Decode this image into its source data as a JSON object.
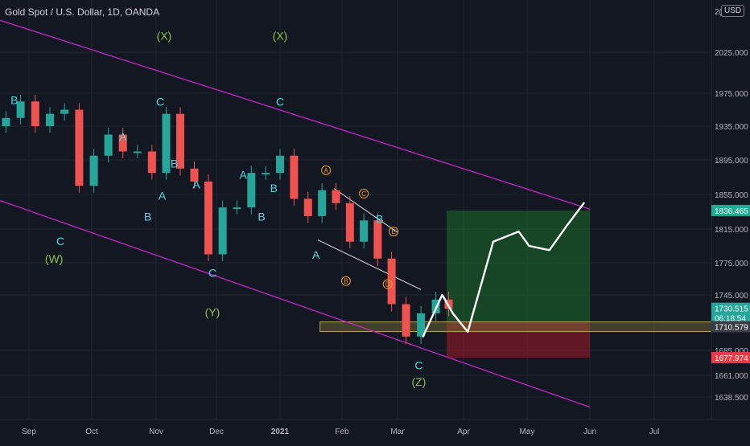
{
  "chart_data": {
    "type": "candlestick",
    "title": "Gold Spot / U.S. Dollar, 1D, OANDA",
    "currency": "USD",
    "ylim": [
      1620,
      2060
    ],
    "y_ticks": [
      "2025.000",
      "1975.000",
      "1935.000",
      "1895.000",
      "1855.000",
      "1815.000",
      "1775.000",
      "1745.000",
      "1685.000",
      "1661.000",
      "1638.500"
    ],
    "y_tick_values": [
      2025,
      1975,
      1935,
      1895,
      1855,
      1815,
      1775,
      1745,
      1685,
      1661,
      1638.5
    ],
    "top_partial_tick": "2(",
    "x_ticks": [
      "Sep",
      "Oct",
      "Nov",
      "Dec",
      "2021",
      "Feb",
      "Mar",
      "Apr",
      "May",
      "Jun",
      "Jul"
    ],
    "x_tick_dates": [
      "2020-09-01",
      "2020-10-01",
      "2020-11-01",
      "2020-12-01",
      "2021-01-01",
      "2021-02-01",
      "2021-03-01",
      "2021-04-01",
      "2021-05-01",
      "2021-06-01",
      "2021-07-01"
    ],
    "series": [
      {
        "dates": [
          "2020-08-21",
          "2020-08-28",
          "2020-09-04",
          "2020-09-11",
          "2020-09-18",
          "2020-09-25",
          "2020-10-02",
          "2020-10-09",
          "2020-10-16",
          "2020-10-23",
          "2020-10-30",
          "2020-11-06",
          "2020-11-13",
          "2020-11-20",
          "2020-11-27",
          "2020-12-04",
          "2020-12-11",
          "2020-12-18",
          "2020-12-25",
          "2021-01-01",
          "2021-01-08",
          "2021-01-15",
          "2021-01-22",
          "2021-01-29",
          "2021-02-05",
          "2021-02-12",
          "2021-02-19",
          "2021-02-26",
          "2021-03-05",
          "2021-03-12",
          "2021-03-19",
          "2021-03-25"
        ],
        "close": [
          1945,
          1965,
          1935,
          1950,
          1955,
          1865,
          1900,
          1925,
          1905,
          1905,
          1880,
          1950,
          1885,
          1870,
          1785,
          1840,
          1840,
          1880,
          1880,
          1900,
          1850,
          1830,
          1860,
          1845,
          1800,
          1825,
          1780,
          1735,
          1700,
          1725,
          1740,
          1730
        ]
      }
    ],
    "price_labels": {
      "target": {
        "value": 1836.465,
        "text": "1836.465",
        "color": "#22ab94"
      },
      "current": {
        "value": 1730.515,
        "text": "1730.515",
        "countdown": "06:18:54",
        "color": "#26a69a"
      },
      "support": {
        "value": 1710.579,
        "text": "1710.579",
        "color": "#3a3e48"
      },
      "stop": {
        "value": 1677.974,
        "text": "1677.974",
        "color": "#f23645"
      }
    },
    "wave_labels": [
      {
        "text": "B",
        "date": "2020-08-25",
        "value": 1962,
        "color": "#4dd8e8"
      },
      {
        "text": "(X)",
        "date": "2020-11-05",
        "value": 2040,
        "color": "#8bc34a"
      },
      {
        "text": "C",
        "date": "2020-11-03",
        "value": 1960,
        "color": "#4dd8e8"
      },
      {
        "text": "A",
        "date": "2020-10-16",
        "value": 1918,
        "color": "#4dd8e8"
      },
      {
        "text": "B",
        "date": "2020-11-10",
        "value": 1886,
        "color": "#4dd8e8"
      },
      {
        "text": "A",
        "date": "2020-11-04",
        "value": 1849,
        "color": "#4dd8e8"
      },
      {
        "text": "B",
        "date": "2020-10-28",
        "value": 1825,
        "color": "#4dd8e8"
      },
      {
        "text": "C",
        "date": "2020-09-16",
        "value": 1796,
        "color": "#4dd8e8"
      },
      {
        "text": "(W)",
        "date": "2020-09-13",
        "value": 1775,
        "color": "#8bc34a"
      },
      {
        "text": "A",
        "date": "2020-11-21",
        "value": 1862,
        "color": "#4dd8e8"
      },
      {
        "text": "A",
        "date": "2020-12-14",
        "value": 1873,
        "color": "#4dd8e8"
      },
      {
        "text": "B",
        "date": "2020-12-23",
        "value": 1825,
        "color": "#4dd8e8"
      },
      {
        "text": "B",
        "date": "2020-12-29",
        "value": 1858,
        "color": "#4dd8e8"
      },
      {
        "text": "(X)",
        "date": "2021-01-01",
        "value": 2040,
        "color": "#8bc34a"
      },
      {
        "text": "C",
        "date": "2021-01-01",
        "value": 1960,
        "color": "#4dd8e8"
      },
      {
        "text": "C",
        "date": "2020-11-29",
        "value": 1762,
        "color": "#4dd8e8"
      },
      {
        "text": "(Y)",
        "date": "2020-11-29",
        "value": 1722,
        "color": "#8bc34a"
      },
      {
        "text": "A",
        "date": "2021-01-19",
        "value": 1780,
        "color": "#4dd8e8"
      },
      {
        "text": "B",
        "date": "2021-02-20",
        "value": 1822,
        "color": "#4dd8e8"
      },
      {
        "text": "C",
        "date": "2021-03-11",
        "value": 1667,
        "color": "#4dd8e8"
      },
      {
        "text": "(Z)",
        "date": "2021-03-11",
        "value": 1650,
        "color": "#8bc34a"
      }
    ],
    "circle_labels": [
      {
        "text": "A",
        "date": "2021-01-24",
        "value": 1883
      },
      {
        "text": "B",
        "date": "2021-02-03",
        "value": 1758
      },
      {
        "text": "C",
        "date": "2021-02-12",
        "value": 1856
      },
      {
        "text": "D",
        "date": "2021-02-24",
        "value": 1755
      },
      {
        "text": "E",
        "date": "2021-02-27",
        "value": 1812
      }
    ],
    "colors": {
      "background": "#131722",
      "grid": "#222632",
      "bull": "#26a69a",
      "bear": "#ef5350",
      "channel": "#c325c9",
      "target_zone": "rgba(25,110,40,0.55)",
      "stop_zone": "rgba(160,25,40,0.55)",
      "support_band": "rgba(150,140,60,0.35)",
      "projection": "#ffffff"
    }
  }
}
